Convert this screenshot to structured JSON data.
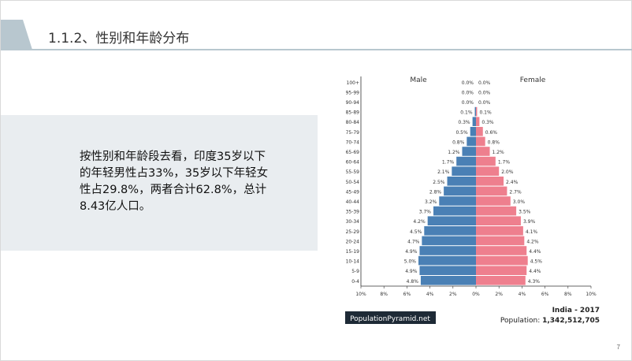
{
  "slide": {
    "title": "1.1.2、性别和年龄分布",
    "body": "按性别和年龄段去看，印度35岁以下的年轻男性占33%，35岁以下年轻女性占29.8%，两者合计62.8%，总计8.43亿人口。",
    "page_number": "7"
  },
  "colors": {
    "male": "#4a80b5",
    "female": "#ee7f8e",
    "accent": "#b8c7cf"
  },
  "chart_data": {
    "type": "bar",
    "orientation": "horizontal-pyramid",
    "categories": [
      "100+",
      "95-99",
      "90-94",
      "85-89",
      "80-84",
      "75-79",
      "70-74",
      "65-69",
      "60-64",
      "55-59",
      "50-54",
      "45-49",
      "40-44",
      "35-39",
      "30-34",
      "25-29",
      "20-24",
      "15-19",
      "10-14",
      "5-9",
      "0-4"
    ],
    "series": [
      {
        "name": "Male",
        "values": [
          0.0,
          0.0,
          0.0,
          0.1,
          0.3,
          0.5,
          0.8,
          1.2,
          1.7,
          2.1,
          2.5,
          2.8,
          3.2,
          3.7,
          4.2,
          4.5,
          4.7,
          4.9,
          5.0,
          4.9,
          4.8
        ],
        "labels": [
          "0.0%",
          "0.0%",
          "0.0%",
          "0.1%",
          "0.3%",
          "0.5%",
          "0.8%",
          "1.2%",
          "1.7%",
          "2.1%",
          "2.5%",
          "2.8%",
          "3.2%",
          "3.7%",
          "4.2%",
          "4.5%",
          "4.7%",
          "4.9%",
          "5.0%",
          "4.9%",
          "4.8%"
        ]
      },
      {
        "name": "Female",
        "values": [
          0.0,
          0.0,
          0.0,
          0.1,
          0.3,
          0.6,
          0.8,
          1.2,
          1.7,
          2.0,
          2.4,
          2.7,
          3.0,
          3.5,
          3.9,
          4.1,
          4.2,
          4.4,
          4.5,
          4.4,
          4.3
        ],
        "labels": [
          "0.0%",
          "0.0%",
          "0.0%",
          "0.1%",
          "0.3%",
          "0.6%",
          "0.8%",
          "1.2%",
          "1.7%",
          "2.0%",
          "2.4%",
          "2.7%",
          "3.0%",
          "3.5%",
          "3.9%",
          "4.1%",
          "4.2%",
          "4.4%",
          "4.5%",
          "4.4%",
          "4.3%"
        ]
      }
    ],
    "xlim": [
      -10,
      10
    ],
    "xticks": [
      "10%",
      "8%",
      "6%",
      "4%",
      "2%",
      "0%",
      "2%",
      "4%",
      "6%",
      "8%",
      "10%"
    ],
    "country": "India - 2017",
    "population_label": "Population:",
    "population_value": "1,342,512,705",
    "source": "PopulationPyramid.net"
  }
}
